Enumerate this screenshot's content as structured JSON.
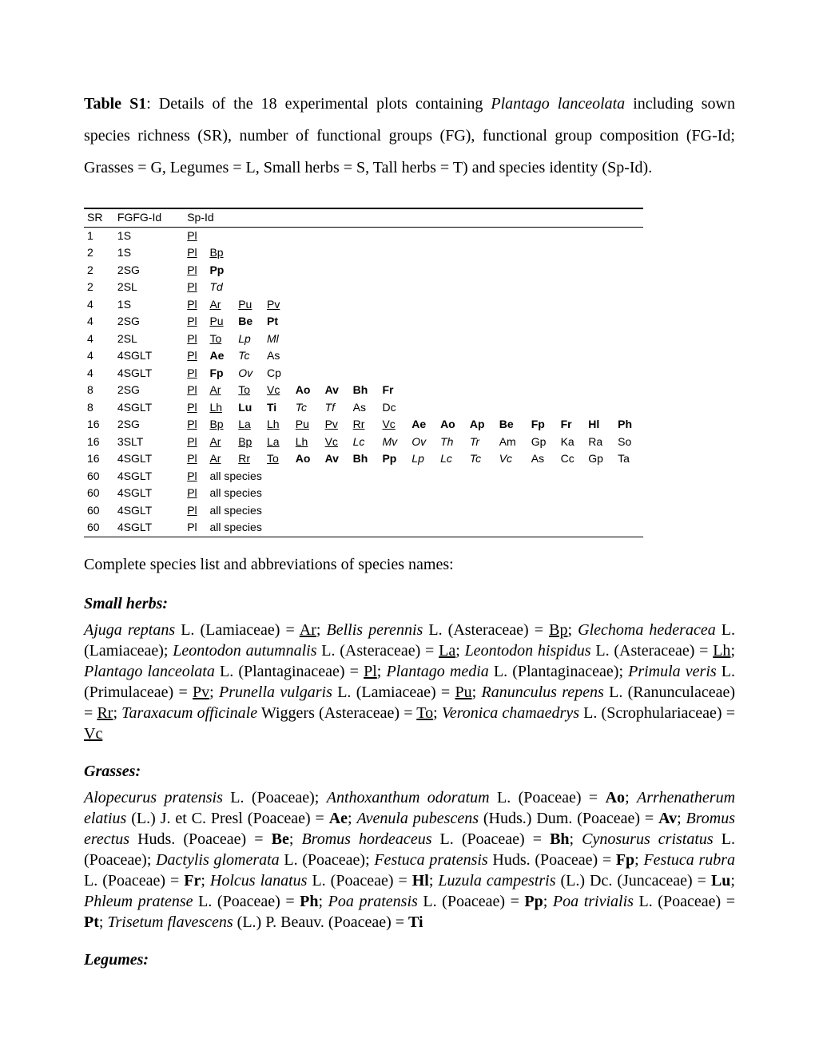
{
  "caption": {
    "label": "Table S1",
    "text_before_species": ": Details of the 18 experimental plots containing ",
    "species_name": "Plantago lanceolata",
    "text_after_species": " including sown species richness (SR), number of functional groups (FG), functional group composition (FG-Id; Grasses = G, Legumes = L, Small herbs = S, Tall herbs = T) and species identity (Sp-Id)."
  },
  "table": {
    "headers": {
      "sr": "SR",
      "fg": "FG",
      "fgid": "FG-Id",
      "spid": "Sp-Id"
    },
    "rows": [
      {
        "sr": "1",
        "fg": "1",
        "fgid": "S",
        "sp": [
          {
            "t": "Pl",
            "s": "u"
          }
        ]
      },
      {
        "sr": "2",
        "fg": "1",
        "fgid": "S",
        "sp": [
          {
            "t": "Pl",
            "s": "u"
          },
          {
            "t": "Bp",
            "s": "u"
          }
        ]
      },
      {
        "sr": "2",
        "fg": "2",
        "fgid": "SG",
        "sp": [
          {
            "t": "Pl",
            "s": "u"
          },
          {
            "t": "Pp",
            "s": "b"
          }
        ]
      },
      {
        "sr": "2",
        "fg": "2",
        "fgid": "SL",
        "sp": [
          {
            "t": "Pl",
            "s": "u"
          },
          {
            "t": "Td",
            "s": "i"
          }
        ]
      },
      {
        "sr": "4",
        "fg": "1",
        "fgid": "S",
        "sp": [
          {
            "t": "Pl",
            "s": "u"
          },
          {
            "t": "Ar",
            "s": "u"
          },
          {
            "t": "Pu",
            "s": "u"
          },
          {
            "t": "Pv",
            "s": "u"
          }
        ]
      },
      {
        "sr": "4",
        "fg": "2",
        "fgid": "SG",
        "sp": [
          {
            "t": "Pl",
            "s": "u"
          },
          {
            "t": "Pu",
            "s": "u"
          },
          {
            "t": "Be",
            "s": "b"
          },
          {
            "t": "Pt",
            "s": "b"
          }
        ]
      },
      {
        "sr": "4",
        "fg": "2",
        "fgid": "SL",
        "sp": [
          {
            "t": "Pl",
            "s": "u"
          },
          {
            "t": "To",
            "s": "u"
          },
          {
            "t": "Lp",
            "s": "i"
          },
          {
            "t": "Ml",
            "s": "i"
          }
        ]
      },
      {
        "sr": "4",
        "fg": "4",
        "fgid": "SGLT",
        "sp": [
          {
            "t": "Pl",
            "s": "u"
          },
          {
            "t": "Ae",
            "s": "b"
          },
          {
            "t": "Tc",
            "s": "i"
          },
          {
            "t": "As",
            "s": ""
          }
        ]
      },
      {
        "sr": "4",
        "fg": "4",
        "fgid": "SGLT",
        "sp": [
          {
            "t": "Pl",
            "s": "u"
          },
          {
            "t": "Fp",
            "s": "b"
          },
          {
            "t": "Ov",
            "s": "i"
          },
          {
            "t": "Cp",
            "s": ""
          }
        ]
      },
      {
        "sr": "8",
        "fg": "2",
        "fgid": "SG",
        "sp": [
          {
            "t": "Pl",
            "s": "u"
          },
          {
            "t": "Ar",
            "s": "u"
          },
          {
            "t": "To",
            "s": "u"
          },
          {
            "t": "Vc",
            "s": "u"
          },
          {
            "t": "Ao",
            "s": "b"
          },
          {
            "t": "Av",
            "s": "b"
          },
          {
            "t": "Bh",
            "s": "b"
          },
          {
            "t": "Fr",
            "s": "b"
          }
        ]
      },
      {
        "sr": "8",
        "fg": "4",
        "fgid": "SGLT",
        "sp": [
          {
            "t": "Pl",
            "s": "u"
          },
          {
            "t": "Lh",
            "s": "u"
          },
          {
            "t": "Lu",
            "s": "b"
          },
          {
            "t": "Ti",
            "s": "b"
          },
          {
            "t": "Tc",
            "s": "i"
          },
          {
            "t": "Tf",
            "s": "i"
          },
          {
            "t": "As",
            "s": ""
          },
          {
            "t": "Dc",
            "s": ""
          }
        ]
      },
      {
        "sr": "16",
        "fg": "2",
        "fgid": "SG",
        "sp": [
          {
            "t": "Pl",
            "s": "u"
          },
          {
            "t": "Bp",
            "s": "u"
          },
          {
            "t": "La",
            "s": "u"
          },
          {
            "t": "Lh",
            "s": "u"
          },
          {
            "t": "Pu",
            "s": "u"
          },
          {
            "t": "Pv",
            "s": "u"
          },
          {
            "t": "Rr",
            "s": "u"
          },
          {
            "t": "Vc",
            "s": "u"
          },
          {
            "t": "Ae",
            "s": "b"
          },
          {
            "t": "Ao",
            "s": "b"
          },
          {
            "t": "Ap",
            "s": "b"
          },
          {
            "t": "Be",
            "s": "b"
          },
          {
            "t": "Fp",
            "s": "b"
          },
          {
            "t": "Fr",
            "s": "b"
          },
          {
            "t": "Hl",
            "s": "b"
          },
          {
            "t": "Ph",
            "s": "b"
          }
        ]
      },
      {
        "sr": "16",
        "fg": "3",
        "fgid": "SLT",
        "sp": [
          {
            "t": "Pl",
            "s": "u"
          },
          {
            "t": "Ar",
            "s": "u"
          },
          {
            "t": "Bp",
            "s": "u"
          },
          {
            "t": "La",
            "s": "u"
          },
          {
            "t": "Lh",
            "s": "u"
          },
          {
            "t": "Vc",
            "s": "u"
          },
          {
            "t": "Lc",
            "s": "i"
          },
          {
            "t": "Mv",
            "s": "i"
          },
          {
            "t": "Ov",
            "s": "i"
          },
          {
            "t": "Th",
            "s": "i"
          },
          {
            "t": "Tr",
            "s": "i"
          },
          {
            "t": "Am",
            "s": ""
          },
          {
            "t": "Gp",
            "s": ""
          },
          {
            "t": "Ka",
            "s": ""
          },
          {
            "t": "Ra",
            "s": ""
          },
          {
            "t": "So",
            "s": ""
          }
        ]
      },
      {
        "sr": "16",
        "fg": "4",
        "fgid": "SGLT",
        "sp": [
          {
            "t": "Pl",
            "s": "u"
          },
          {
            "t": "Ar",
            "s": "u"
          },
          {
            "t": "Rr",
            "s": "u"
          },
          {
            "t": "To",
            "s": "u"
          },
          {
            "t": "Ao",
            "s": "b"
          },
          {
            "t": "Av",
            "s": "b"
          },
          {
            "t": "Bh",
            "s": "b"
          },
          {
            "t": "Pp",
            "s": "b"
          },
          {
            "t": "Lp",
            "s": "i"
          },
          {
            "t": "Lc",
            "s": "i"
          },
          {
            "t": "Tc",
            "s": "i"
          },
          {
            "t": "Vc",
            "s": "i"
          },
          {
            "t": "As",
            "s": ""
          },
          {
            "t": "Cc",
            "s": ""
          },
          {
            "t": "Gp",
            "s": ""
          },
          {
            "t": "Ta",
            "s": ""
          }
        ]
      },
      {
        "sr": "60",
        "fg": "4",
        "fgid": "SGLT",
        "sp_text": "all species",
        "sp_first": {
          "t": "Pl",
          "s": "u"
        }
      },
      {
        "sr": "60",
        "fg": "4",
        "fgid": "SGLT",
        "sp_text": "all species",
        "sp_first": {
          "t": "Pl",
          "s": "u"
        }
      },
      {
        "sr": "60",
        "fg": "4",
        "fgid": "SGLT",
        "sp_text": "all species",
        "sp_first": {
          "t": "Pl",
          "s": "u"
        }
      },
      {
        "sr": "60",
        "fg": "4",
        "fgid": "SGLT",
        "sp_text": "all species",
        "sp_first": {
          "t": "Pl",
          "s": ""
        }
      }
    ]
  },
  "post_caption": "Complete species list and abbreviations of species names:",
  "groups": {
    "small_herbs": {
      "title": "Small herbs:",
      "html": "<i>Ajuga reptans</i> L. (Lamiaceae) = <span class=\"u\">Ar</span>; <i>Bellis perennis</i> L. (Asteraceae) = <span class=\"u\">Bp</span>; <i>Glechoma hederacea</i> L. (Lamiaceae); <i>Leontodon autumnalis</i> L. (Asteraceae) = <span class=\"u\">La</span>; <i>Leontodon hispidus</i> L. (Asteraceae) = <span class=\"u\">Lh</span>; <i>Plantago lanceolata</i> L. (Plantaginaceae) = <span class=\"u\">Pl</span>; <i>Plantago media</i> L. (Plantaginaceae); <i>Primula veris</i> L. (Primulaceae) = <span class=\"u\">Pv</span>; <i>Prunella vulgaris</i> L. (Lamiaceae) = <span class=\"u\">Pu</span>; <i>Ranunculus repens</i> L. (Ranunculaceae) = <span class=\"u\">Rr</span>; <i>Taraxacum officinale</i> Wiggers (Asteraceae) = <span class=\"u\">To</span>; <i>Veronica chamaedrys</i> L. (Scrophulariaceae) = <span class=\"u\">Vc</span>"
    },
    "grasses": {
      "title": "Grasses:",
      "html": "<i>Alopecurus pratensis</i> L. (Poaceae); <i>Anthoxanthum odoratum</i> L. (Poaceae) = <b>Ao</b>; <i>Arrhenatherum elatius</i> (L.) J. et C. Presl (Poaceae) = <b>Ae</b>; <i>Avenula pubescens</i> (Huds.) Dum. (Poaceae) = <b>Av</b>; <i>Bromus erectus</i> Huds. (Poaceae) = <b>Be</b>; <i>Bromus hordeaceus</i> L. (Poaceae) = <b>Bh</b>; <i>Cynosurus cristatus</i> L. (Poaceae); <i>Dactylis glomerata</i> L. (Poaceae); <i>Festuca pratensis</i> Huds. (Poaceae) = <b>Fp</b>; <i>Festuca rubra</i> L. (Poaceae) = <b>Fr</b>; <i>Holcus lanatus</i> L. (Poaceae) = <b>Hl</b>; <i>Luzula campestris</i> (L.) Dc. (Juncaceae) = <b>Lu</b>; <i>Phleum pratense</i> L. (Poaceae) = <b>Ph</b>; <i>Poa pratensis</i> L. (Poaceae) = <b>Pp</b>; <i>Poa trivialis</i> L. (Poaceae) = <b>Pt</b>; <i>Trisetum flavescens</i> (L.) P. Beauv. (Poaceae) = <b>Ti</b>"
    },
    "legumes": {
      "title": "Legumes:"
    }
  }
}
